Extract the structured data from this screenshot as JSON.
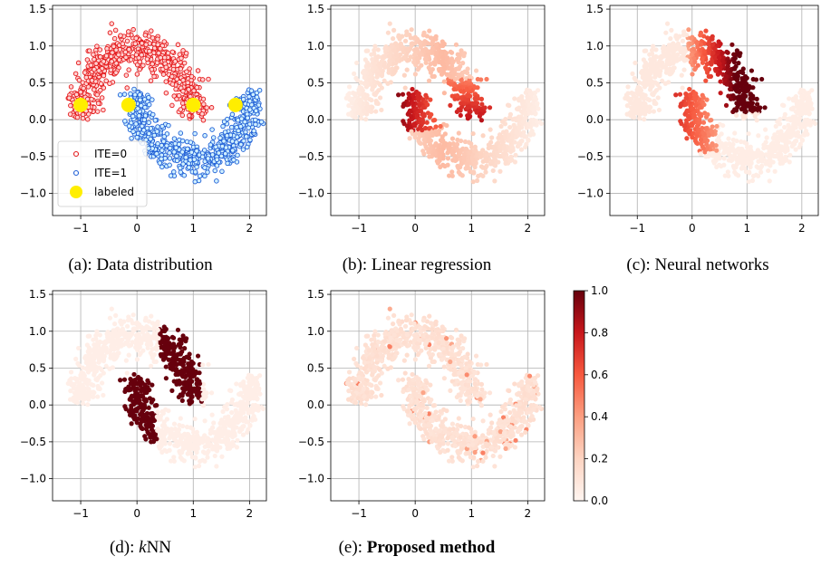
{
  "chart_data": [
    {
      "id": "a",
      "type": "scatter",
      "caption": "(a): Data distribution",
      "xlim": [
        -1.5,
        2.3
      ],
      "ylim": [
        -1.3,
        1.55
      ],
      "xticks": [
        -1,
        0,
        1,
        2
      ],
      "yticks": [
        -1.0,
        -0.5,
        0.0,
        0.5,
        1.0,
        1.5
      ],
      "grid": true,
      "legend_position": "lower-left",
      "legend": [
        {
          "label": "ITE=0",
          "marker": "hollow-circle",
          "color": "#e41a1c"
        },
        {
          "label": "ITE=1",
          "marker": "hollow-circle",
          "color": "#1f5fd6"
        },
        {
          "label": "labeled",
          "marker": "filled-circle",
          "color": "#ffee00"
        }
      ],
      "labeled_points": [
        {
          "x": -1.0,
          "y": 0.2
        },
        {
          "x": -0.15,
          "y": 0.2
        },
        {
          "x": 1.0,
          "y": 0.2
        },
        {
          "x": 1.75,
          "y": 0.2
        }
      ]
    },
    {
      "id": "b",
      "type": "scatter",
      "caption": "(b): Linear regression",
      "xlim": [
        -1.5,
        2.3
      ],
      "ylim": [
        -1.3,
        1.55
      ],
      "xticks": [
        -1,
        0,
        1,
        2
      ],
      "yticks": [
        -1.0,
        -0.5,
        0.0,
        0.5,
        1.0,
        1.5
      ],
      "grid": true,
      "colormap": "Reds"
    },
    {
      "id": "c",
      "type": "scatter",
      "caption": "(c): Neural networks",
      "xlim": [
        -1.5,
        2.3
      ],
      "ylim": [
        -1.3,
        1.55
      ],
      "xticks": [
        -1,
        0,
        1,
        2
      ],
      "yticks": [
        -1.0,
        -0.5,
        0.0,
        0.5,
        1.0,
        1.5
      ],
      "grid": true,
      "colormap": "Reds"
    },
    {
      "id": "d",
      "type": "scatter",
      "caption_prefix": "(d): ",
      "caption_italic": "k",
      "caption_suffix": "NN",
      "xlim": [
        -1.5,
        2.3
      ],
      "ylim": [
        -1.3,
        1.55
      ],
      "xticks": [
        -1,
        0,
        1,
        2
      ],
      "yticks": [
        -1.0,
        -0.5,
        0.0,
        0.5,
        1.0,
        1.5
      ],
      "grid": true,
      "colormap": "Reds"
    },
    {
      "id": "e",
      "type": "scatter",
      "caption_prefix": "(e): ",
      "caption_bold": "Proposed method",
      "xlim": [
        -1.5,
        2.3
      ],
      "ylim": [
        -1.3,
        1.55
      ],
      "xticks": [
        -1,
        0,
        1,
        2
      ],
      "yticks": [
        -1.0,
        -0.5,
        0.0,
        0.5,
        1.0,
        1.5
      ],
      "grid": true,
      "colormap": "Reds"
    }
  ],
  "colorbar": {
    "range": [
      0.0,
      1.0
    ],
    "ticks": [
      "0.0",
      "0.2",
      "0.4",
      "0.6",
      "0.8",
      "1.0"
    ],
    "colormap": "Reds",
    "color_low": "#fff5f0",
    "color_high": "#67000d"
  }
}
